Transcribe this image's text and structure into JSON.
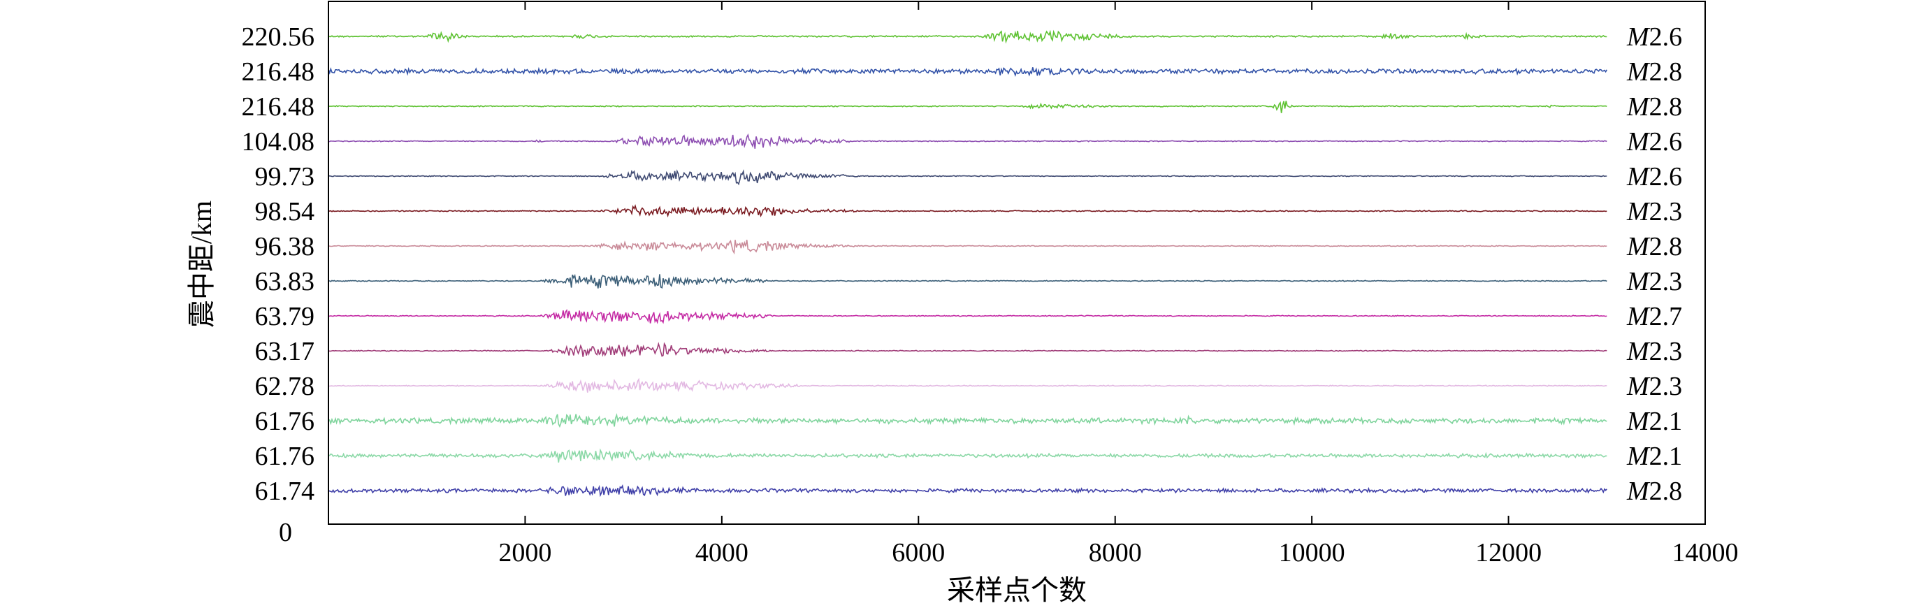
{
  "chart_data": {
    "type": "line",
    "xlabel": "采样点个数",
    "ylabel": "震中距/km",
    "xlim": [
      0,
      14000
    ],
    "x_ticks": [
      "2000",
      "4000",
      "6000",
      "8000",
      "10000",
      "12000",
      "14000"
    ],
    "y_zero_label": "0",
    "grid": false,
    "samples_per_trace": 13000,
    "traces": [
      {
        "distance_label": "220.56",
        "magnitude_prefix": "M",
        "magnitude_value": "2.6",
        "color": "#5ec232",
        "noise": 0.5,
        "bursts": [
          [
            1000,
            1400,
            4.5
          ],
          [
            2400,
            3000,
            1.6
          ],
          [
            6600,
            8200,
            4.2
          ],
          [
            10700,
            11000,
            3.0
          ],
          [
            11500,
            11800,
            2.0
          ]
        ]
      },
      {
        "distance_label": "216.48",
        "magnitude_prefix": "M",
        "magnitude_value": "2.8",
        "color": "#3252a8",
        "noise": 1.5,
        "bursts": [
          [
            6600,
            8200,
            3.3
          ]
        ]
      },
      {
        "distance_label": "216.48",
        "magnitude_prefix": "M",
        "magnitude_value": "2.8",
        "color": "#5ec232",
        "noise": 0.35,
        "bursts": [
          [
            7000,
            8000,
            1.8
          ],
          [
            9600,
            9800,
            7.0
          ],
          [
            12400,
            12500,
            1.5
          ]
        ]
      },
      {
        "distance_label": "104.08",
        "magnitude_prefix": "M",
        "magnitude_value": "2.6",
        "color": "#8e4fb2",
        "noise": 0.3,
        "bursts": [
          [
            2100,
            2200,
            1.2
          ],
          [
            2800,
            5300,
            4.0
          ],
          [
            4000,
            4800,
            7.0
          ]
        ]
      },
      {
        "distance_label": "99.73",
        "magnitude_prefix": "M",
        "magnitude_value": "2.6",
        "color": "#3f4a72",
        "noise": 0.3,
        "bursts": [
          [
            2700,
            5400,
            3.5
          ],
          [
            4000,
            4800,
            5.5
          ]
        ]
      },
      {
        "distance_label": "98.54",
        "magnitude_prefix": "M",
        "magnitude_value": "2.3",
        "color": "#7a1a20",
        "noise": 0.35,
        "bursts": [
          [
            2700,
            5400,
            3.5
          ],
          [
            4000,
            4800,
            5.0
          ]
        ]
      },
      {
        "distance_label": "96.38",
        "magnitude_prefix": "M",
        "magnitude_value": "2.8",
        "color": "#c98a98",
        "noise": 0.3,
        "bursts": [
          [
            2600,
            5400,
            3.2
          ],
          [
            4000,
            4800,
            5.0
          ]
        ]
      },
      {
        "distance_label": "63.83",
        "magnitude_prefix": "M",
        "magnitude_value": "2.3",
        "color": "#3c5f78",
        "noise": 0.3,
        "bursts": [
          [
            2100,
            4500,
            4.8
          ],
          [
            3200,
            3600,
            6.5
          ]
        ]
      },
      {
        "distance_label": "63.79",
        "magnitude_prefix": "M",
        "magnitude_value": "2.7",
        "color": "#c42aa4",
        "noise": 0.3,
        "bursts": [
          [
            2100,
            4500,
            4.8
          ],
          [
            3200,
            3600,
            6.0
          ]
        ]
      },
      {
        "distance_label": "63.17",
        "magnitude_prefix": "M",
        "magnitude_value": "2.3",
        "color": "#a03c78",
        "noise": 0.3,
        "bursts": [
          [
            2200,
            4500,
            4.5
          ],
          [
            3300,
            3600,
            6.0
          ]
        ]
      },
      {
        "distance_label": "62.78",
        "magnitude_prefix": "M",
        "magnitude_value": "2.3",
        "color": "#e2b8e2",
        "noise": 0.3,
        "bursts": [
          [
            2100,
            4800,
            4.5
          ]
        ]
      },
      {
        "distance_label": "61.76",
        "magnitude_prefix": "M",
        "magnitude_value": "2.1",
        "color": "#7fd49c",
        "noise": 1.7,
        "bursts": [
          [
            2000,
            4000,
            4.5
          ],
          [
            8700,
            8800,
            5.5
          ]
        ]
      },
      {
        "distance_label": "61.76",
        "magnitude_prefix": "M",
        "magnitude_value": "2.1",
        "color": "#8ad8a6",
        "noise": 1.2,
        "bursts": [
          [
            2000,
            4000,
            4.5
          ]
        ]
      },
      {
        "distance_label": "61.74",
        "magnitude_prefix": "M",
        "magnitude_value": "2.8",
        "color": "#3f3fa8",
        "noise": 1.2,
        "bursts": [
          [
            2100,
            4000,
            4.2
          ]
        ]
      }
    ]
  }
}
